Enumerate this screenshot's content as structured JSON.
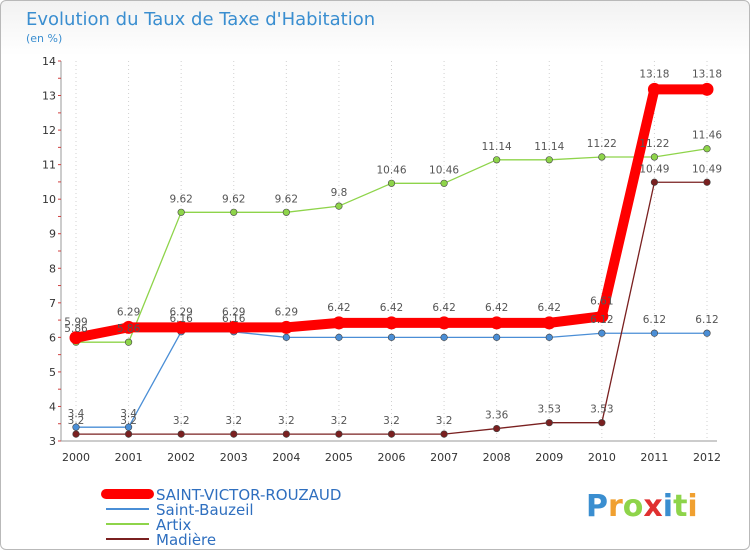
{
  "chart_data": {
    "type": "line",
    "title": "Evolution du Taux de Taxe d'Habitation",
    "subtitle": "(en %)",
    "xlabel": "",
    "ylabel": "",
    "ylim": [
      3,
      14
    ],
    "yticks": [
      3,
      4,
      5,
      6,
      7,
      8,
      9,
      10,
      11,
      12,
      13,
      14
    ],
    "x": [
      "2000",
      "2001",
      "2002",
      "2003",
      "2004",
      "2005",
      "2006",
      "2007",
      "2008",
      "2009",
      "2010",
      "2011",
      "2012"
    ],
    "series": [
      {
        "name": "SAINT-VICTOR-ROUZAUD",
        "color": "#ff0000",
        "values": [
          5.99,
          6.29,
          6.29,
          6.29,
          6.29,
          6.42,
          6.42,
          6.42,
          6.42,
          6.42,
          6.61,
          13.18,
          13.18
        ],
        "labels": [
          "5.99",
          "6.29",
          "6.29",
          "6.29",
          "6.29",
          "6.42",
          "6.42",
          "6.42",
          "6.42",
          "6.42",
          "6.61",
          "13.18",
          "13.18"
        ]
      },
      {
        "name": "Saint-Bauzeil",
        "color": "#4a8ed6",
        "values": [
          3.4,
          3.4,
          6.16,
          6.16,
          6.0,
          6.0,
          6.0,
          6.0,
          6.0,
          6.0,
          6.12,
          6.12,
          6.12
        ],
        "labels": [
          "3.4",
          "3.4",
          "6.16",
          "6.16",
          "",
          "",
          "",
          "",
          "",
          "",
          "6.12",
          "6.12",
          "6.12"
        ]
      },
      {
        "name": "Artix",
        "color": "#8ed44a",
        "values": [
          5.86,
          5.86,
          9.62,
          9.62,
          9.62,
          9.8,
          10.46,
          10.46,
          11.14,
          11.14,
          11.22,
          11.22,
          11.46
        ],
        "labels": [
          "5.86",
          "5.86",
          "9.62",
          "9.62",
          "9.62",
          "9.8",
          "10.46",
          "10.46",
          "11.14",
          "11.14",
          "11.22",
          "11.22",
          "11.46"
        ]
      },
      {
        "name": "Madière",
        "color": "#7a2020",
        "values": [
          3.2,
          3.2,
          3.2,
          3.2,
          3.2,
          3.2,
          3.2,
          3.2,
          3.36,
          3.53,
          3.53,
          10.49,
          10.49
        ],
        "labels": [
          "3.2",
          "3.2",
          "3.2",
          "3.2",
          "3.2",
          "3.2",
          "3.2",
          "3.2",
          "3.36",
          "3.53",
          "3.53",
          "10.49",
          "10.49"
        ]
      }
    ],
    "legend_position": "bottom-left"
  },
  "logo": {
    "letters": [
      "P",
      "r",
      "o",
      "x",
      "i",
      "t",
      "i"
    ],
    "colors": [
      "#3a8ed0",
      "#f0a030",
      "#8ed44a",
      "#e03030",
      "#3a8ed0",
      "#8ed44a",
      "#f0a030"
    ]
  }
}
